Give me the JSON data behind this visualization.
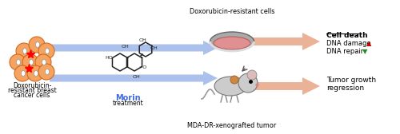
{
  "bg_color": "#ffffff",
  "border_color": "#888888",
  "fig_width": 5.0,
  "fig_height": 1.68,
  "dpi": 100,
  "cell_color": "#F4A460",
  "cell_outline": "#D2691E",
  "arrow_color_blue": "#a0b8e8",
  "arrow_color_salmon": "#e8a888",
  "morin_color": "#4169E1",
  "red_arrow_color": "#cc0000",
  "green_arrow_color": "#228B22",
  "label_cancer_line1": "Doxorubicin-",
  "label_cancer_line2": "resistant breast",
  "label_cancer_line3": "cancer cells",
  "label_morin": "Morin",
  "label_treatment": "treatment",
  "label_dox_cells": "Doxorubicin-resistant cells",
  "label_mda": "MDA-DR-xenografted tumor",
  "label_cell_death": "Cell death",
  "label_dna_damage": "DNA damage",
  "label_dna_repair": "DNA repair",
  "label_tumor": "Tumor growth",
  "label_regression": "regression"
}
